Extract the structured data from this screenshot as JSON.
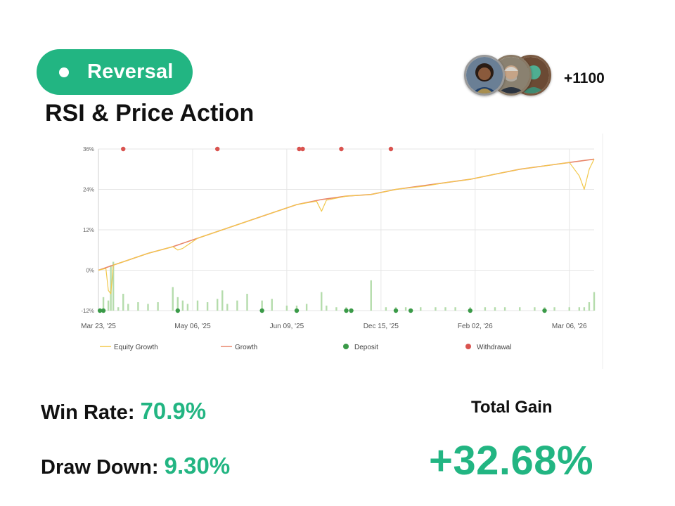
{
  "badge": {
    "label": "Reversal"
  },
  "title": "RSI & Price Action",
  "followers": {
    "count": "+1100"
  },
  "colors": {
    "accent": "#22b582",
    "equity_growth": "#f2c84b",
    "growth": "#e8866a",
    "deposit": "#3a9a48",
    "withdrawal": "#d9534f",
    "volume": "#b5dcac"
  },
  "chart_data": {
    "type": "line",
    "title": "",
    "xlabel": "",
    "ylabel": "",
    "ylim": [
      -12,
      36
    ],
    "yticks": [
      "36%",
      "24%",
      "12%",
      "0%",
      "-12%"
    ],
    "ytick_values": [
      36,
      24,
      12,
      0,
      -12
    ],
    "xticks": [
      "Mar 23, '25",
      "May 06, '25",
      "Jun 09, '25",
      "Dec 15, '25",
      "Feb 02, '26",
      "Mar 06, '26"
    ],
    "xtick_positions": [
      0,
      19,
      38,
      57,
      76,
      95
    ],
    "x_index_range": [
      0,
      100
    ],
    "legend": [
      "Equity Growth",
      "Growth",
      "Deposit",
      "Withdrawal"
    ],
    "legend_position": "bottom",
    "grid": true,
    "series": [
      {
        "name": "Growth",
        "x": [
          0,
          3,
          5,
          10,
          15,
          20,
          25,
          30,
          35,
          40,
          45,
          50,
          55,
          60,
          65,
          70,
          75,
          80,
          85,
          90,
          95,
          100
        ],
        "y": [
          0,
          1.5,
          2.5,
          5,
          7,
          9.5,
          12,
          14.5,
          17,
          19.5,
          21,
          22,
          22.5,
          24,
          25,
          26,
          27,
          28.5,
          30,
          31,
          32,
          33
        ]
      },
      {
        "name": "Equity Growth",
        "x": [
          0,
          1.5,
          2,
          2.5,
          3,
          5,
          10,
          15,
          16,
          17,
          20,
          25,
          30,
          32,
          35,
          40,
          44,
          45,
          46,
          50,
          55,
          60,
          66,
          70,
          75,
          80,
          85,
          90,
          95,
          97,
          98,
          99,
          100
        ],
        "y": [
          0,
          0.5,
          -6,
          -7,
          1.5,
          2.5,
          5,
          7,
          6,
          6.5,
          9.5,
          12,
          14.5,
          15.5,
          17,
          19.5,
          20.5,
          17.5,
          20.8,
          22,
          22.5,
          24,
          25,
          26,
          27,
          28.5,
          30,
          31,
          32,
          28,
          24,
          30,
          33
        ]
      }
    ],
    "bars": {
      "name": "Volume",
      "x": [
        1,
        2,
        2.5,
        3,
        4,
        5,
        6,
        8,
        10,
        12,
        15,
        16,
        17,
        18,
        20,
        22,
        24,
        25,
        26,
        28,
        30,
        33,
        35,
        38,
        40,
        42,
        45,
        46,
        48,
        50,
        55,
        58,
        60,
        62,
        65,
        68,
        70,
        72,
        75,
        78,
        80,
        82,
        85,
        88,
        90,
        92,
        95,
        97,
        98,
        99,
        100
      ],
      "y": [
        -8,
        -9,
        1.5,
        2.5,
        -11,
        -7,
        -10,
        -9.5,
        -10,
        -9.5,
        -5,
        -8,
        -9,
        -10,
        -9,
        -9.5,
        -8.5,
        -6,
        -10,
        -9,
        -7,
        -9,
        -8.5,
        -10.5,
        -10.5,
        -10,
        -6.5,
        -10.5,
        -11,
        -11,
        -3,
        -11,
        -11,
        -11,
        -11,
        -11,
        -11,
        -11,
        -11,
        -11,
        -11,
        -11,
        -11,
        -11,
        -11,
        -11,
        -11,
        -11,
        -11,
        -9.5,
        -6.5
      ]
    },
    "deposits_x": [
      0.3,
      1,
      16,
      33,
      40,
      50,
      51,
      60,
      63,
      75,
      90
    ],
    "withdrawals_x": [
      5,
      24,
      40.5,
      41.2,
      49,
      59
    ]
  },
  "stats": {
    "win_rate_label": "Win Rate",
    "win_rate_value": "70.9%",
    "draw_down_label": "Draw Down",
    "draw_down_value": "9.30%",
    "total_gain_label": "Total Gain",
    "total_gain_value": "+32.68%"
  }
}
